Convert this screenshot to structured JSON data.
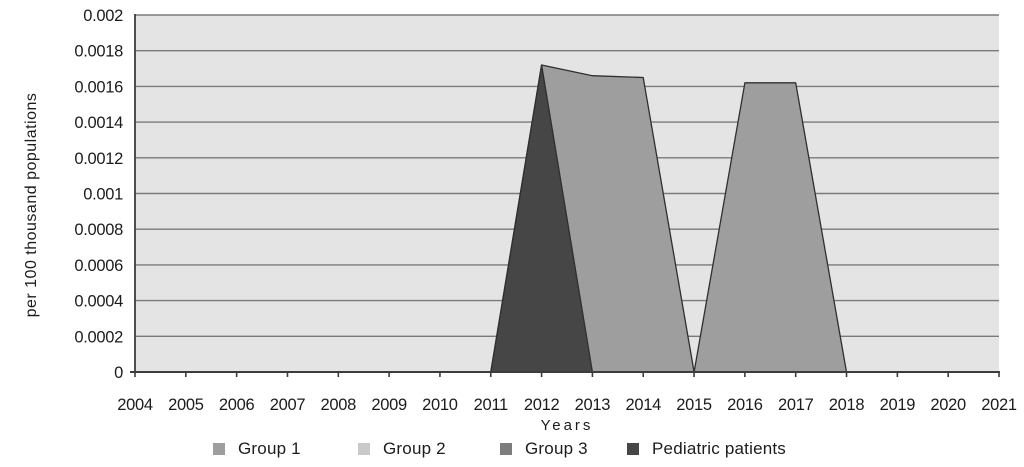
{
  "chart_data": {
    "type": "area",
    "title": "",
    "xlabel": "Years",
    "ylabel": "per 100 thousand populations",
    "categories": [
      2004,
      2005,
      2006,
      2007,
      2008,
      2009,
      2010,
      2011,
      2012,
      2013,
      2014,
      2015,
      2016,
      2017,
      2018,
      2019,
      2020,
      2021
    ],
    "ylim": [
      0,
      0.002
    ],
    "ytick_step": 0.0002,
    "ytick_labels": [
      "0",
      "0.0002",
      "0.0004",
      "0.0006",
      "0.0008",
      "0.001",
      "0.0012",
      "0.0014",
      "0.0016",
      "0.0018",
      "0.002"
    ],
    "grid": "horizontal",
    "legend_position": "bottom",
    "series": [
      {
        "name": "Group 1",
        "color": "#9e9e9e",
        "values": [
          0,
          0,
          0,
          0,
          0,
          0,
          0,
          0,
          0.00172,
          0.00166,
          0.00165,
          0,
          0.00162,
          0.00162,
          0,
          0,
          0,
          0
        ]
      },
      {
        "name": "Group 2",
        "color": "#c9c9c9",
        "values": [
          0,
          0,
          0,
          0,
          0,
          0,
          0,
          0,
          0,
          0,
          0,
          0,
          0,
          0,
          0,
          0,
          0,
          0
        ]
      },
      {
        "name": "Group 3",
        "color": "#7d7d7d",
        "values": [
          0,
          0,
          0,
          0,
          0,
          0,
          0,
          0,
          0,
          0,
          0,
          0,
          0,
          0,
          0,
          0,
          0,
          0
        ]
      },
      {
        "name": "Pediatric patients",
        "color": "#464646",
        "values": [
          0,
          0,
          0,
          0,
          0,
          0,
          0,
          0,
          0.00172,
          0,
          0,
          0,
          0,
          0,
          0,
          0,
          0,
          0
        ]
      }
    ],
    "colors": {
      "plot_background": "#e4e4e4",
      "gridline": "#7a7a7a",
      "axis": "#3c3c3c",
      "area_outline": "#2f2f2f",
      "text": "#1c1c1c"
    }
  }
}
